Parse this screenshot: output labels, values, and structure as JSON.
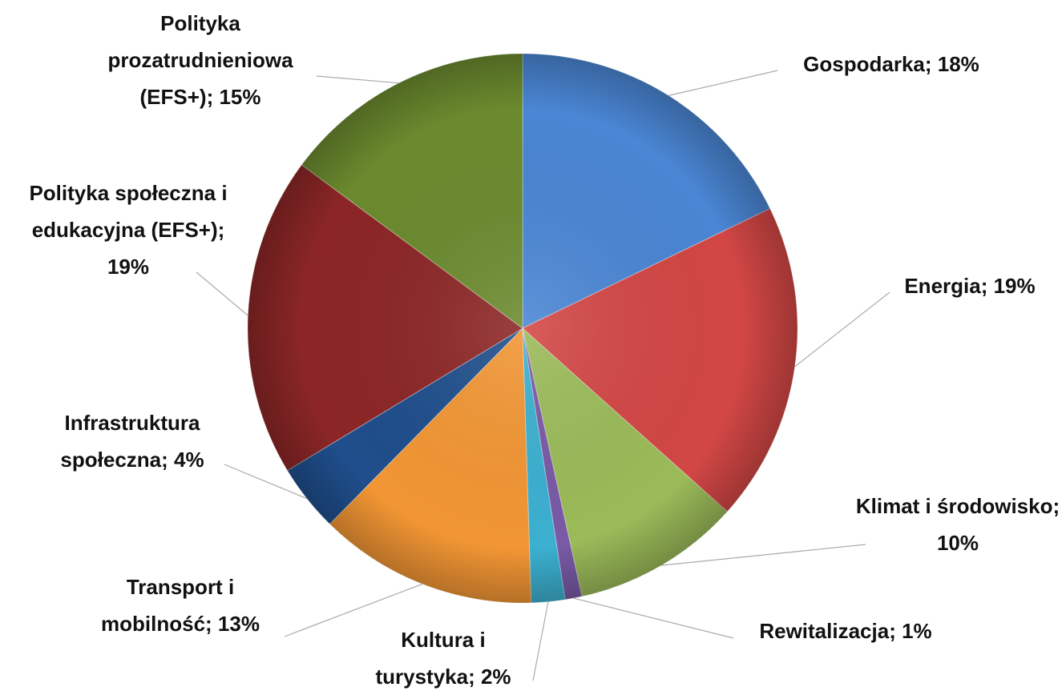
{
  "chart_data": {
    "type": "pie",
    "values": [
      18,
      19,
      10,
      1,
      2,
      13,
      4,
      19,
      15
    ],
    "value_labels": [
      "Gospodarka; 18%",
      "Energia; 19%",
      "Klimat i środowisko; 10%",
      "Rewitalizacja; 1%",
      "Kultura i turystyka; 2%",
      "Transport i mobilność; 13%",
      "Infrastruktura społeczna; 4%",
      "Polityka społeczna i edukacyjna (EFS+); 19%",
      "Polityka prozatrudnieniowa (EFS+); 15%"
    ],
    "colors": [
      "#4a86d4",
      "#d24745",
      "#9bbb59",
      "#7a5aa6",
      "#3cb0d0",
      "#f29634",
      "#1f4e8c",
      "#8c2626",
      "#6b8a2e"
    ]
  }
}
